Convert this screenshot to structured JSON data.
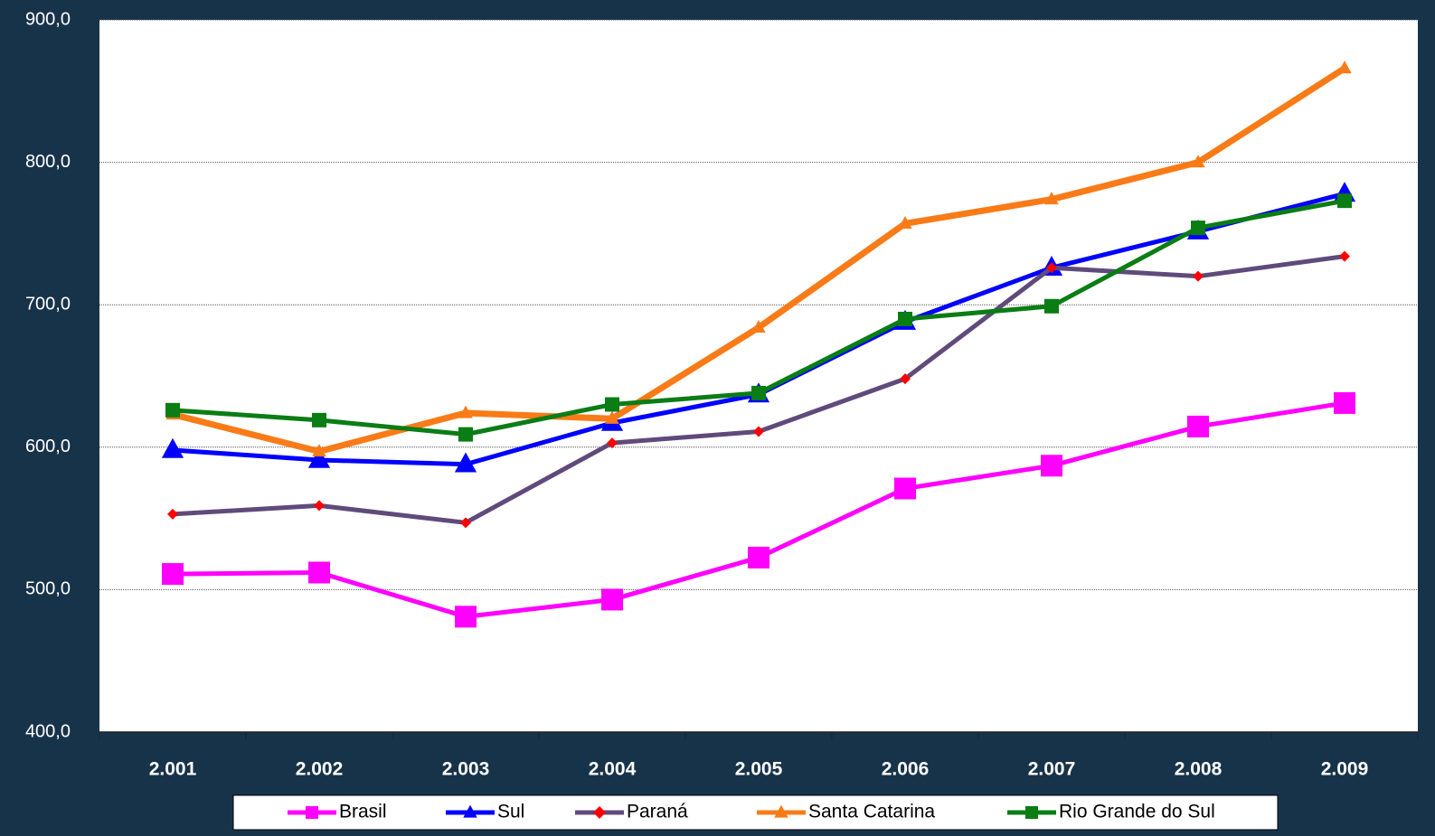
{
  "chart_data": {
    "type": "line",
    "categories": [
      "2.001",
      "2.002",
      "2.003",
      "2.004",
      "2.005",
      "2.006",
      "2.007",
      "2.008",
      "2.009"
    ],
    "series": [
      {
        "name": "Brasil",
        "color": "#ff00ff",
        "marker": "square",
        "values": [
          511,
          512,
          481,
          493,
          522.5,
          571,
          587,
          614.5,
          631
        ]
      },
      {
        "name": "Sul",
        "color": "#0000ff",
        "marker": "triangle",
        "values": [
          598,
          591,
          588,
          617,
          637,
          688,
          726,
          751.5,
          778
        ]
      },
      {
        "name": "Paraná",
        "color": "#604a7b",
        "marker": "diamond",
        "marker_color": "#ff0000",
        "values": [
          553,
          559,
          547,
          603,
          611,
          648,
          726,
          720,
          734
        ]
      },
      {
        "name": "Santa Catarina",
        "color": "#f97b17",
        "marker": "triangle",
        "values": [
          623,
          597,
          624,
          620,
          684,
          757,
          774,
          800,
          866
        ]
      },
      {
        "name": "Rio Grande do Sul",
        "color": "#0a7d14",
        "marker": "square",
        "values": [
          626,
          619,
          609,
          630,
          638,
          690,
          699,
          754,
          773
        ]
      }
    ],
    "ylim": [
      400,
      900
    ],
    "yticks": [
      {
        "value": 400,
        "label": "400,0"
      },
      {
        "value": 500,
        "label": "500,0"
      },
      {
        "value": 600,
        "label": "600,0"
      },
      {
        "value": 700,
        "label": "700,0"
      },
      {
        "value": 800,
        "label": "800,0"
      },
      {
        "value": 900,
        "label": "900,0"
      }
    ],
    "grid": true,
    "legend": "bottom"
  }
}
